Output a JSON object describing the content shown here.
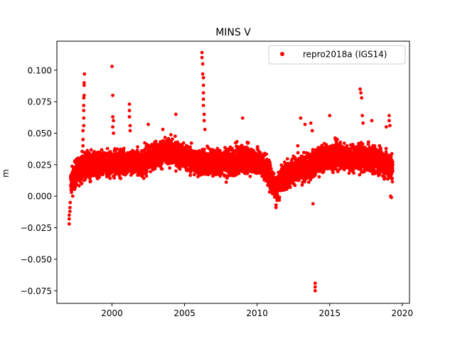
{
  "chart_data": {
    "type": "scatter",
    "title": "MINS V",
    "xlabel": "",
    "ylabel": "m",
    "xlim": [
      1996.2,
      2020.5
    ],
    "ylim": [
      -0.085,
      0.123
    ],
    "xticks": [
      2000,
      2005,
      2010,
      2015,
      2020
    ],
    "xtick_labels": [
      "2000",
      "2005",
      "2010",
      "2015",
      "2020"
    ],
    "yticks": [
      -0.075,
      -0.05,
      -0.025,
      0.0,
      0.025,
      0.05,
      0.075,
      0.1
    ],
    "ytick_labels": [
      "−0.075",
      "−0.050",
      "−0.025",
      "0.000",
      "0.025",
      "0.050",
      "0.075",
      "0.100"
    ],
    "grid": false,
    "legend_position": "top-right",
    "series": [
      {
        "name": "repro2018a (IGS14)",
        "color": "#ff0000",
        "marker": "circle",
        "baseline": [
          [
            1997.15,
            0.01
          ],
          [
            1997.5,
            0.018
          ],
          [
            1998.0,
            0.024
          ],
          [
            1999.0,
            0.024
          ],
          [
            2000.0,
            0.026
          ],
          [
            2001.0,
            0.027
          ],
          [
            2002.0,
            0.026
          ],
          [
            2003.0,
            0.033
          ],
          [
            2004.0,
            0.035
          ],
          [
            2005.0,
            0.031
          ],
          [
            2006.0,
            0.026
          ],
          [
            2007.0,
            0.027
          ],
          [
            2008.0,
            0.026
          ],
          [
            2009.0,
            0.03
          ],
          [
            2010.0,
            0.028
          ],
          [
            2010.6,
            0.022
          ],
          [
            2011.3,
            0.006
          ],
          [
            2011.8,
            0.016
          ],
          [
            2012.5,
            0.02
          ],
          [
            2013.5,
            0.023
          ],
          [
            2014.5,
            0.03
          ],
          [
            2015.5,
            0.033
          ],
          [
            2016.5,
            0.03
          ],
          [
            2017.5,
            0.03
          ],
          [
            2018.5,
            0.028
          ],
          [
            2019.35,
            0.022
          ]
        ],
        "spread": 0.007,
        "outliers": [
          [
            1997.05,
            -0.022
          ],
          [
            1997.05,
            -0.018
          ],
          [
            1997.05,
            -0.015
          ],
          [
            1997.1,
            -0.012
          ],
          [
            1997.1,
            -0.009
          ],
          [
            1997.12,
            -0.005
          ],
          [
            1998.0,
            0.04
          ],
          [
            1998.0,
            0.045
          ],
          [
            1998.0,
            0.052
          ],
          [
            1998.05,
            0.056
          ],
          [
            1998.05,
            0.062
          ],
          [
            1998.05,
            0.068
          ],
          [
            1998.05,
            0.072
          ],
          [
            1998.05,
            0.078
          ],
          [
            1998.08,
            0.08
          ],
          [
            1998.08,
            0.088
          ],
          [
            1998.08,
            0.09
          ],
          [
            1998.1,
            0.097
          ],
          [
            2000.0,
            0.103
          ],
          [
            2000.05,
            0.08
          ],
          [
            2000.05,
            0.063
          ],
          [
            2000.1,
            0.06
          ],
          [
            2000.05,
            0.055
          ],
          [
            2000.1,
            0.05
          ],
          [
            2001.2,
            0.073
          ],
          [
            2001.2,
            0.068
          ],
          [
            2001.2,
            0.063
          ],
          [
            2001.25,
            0.056
          ],
          [
            2001.25,
            0.052
          ],
          [
            2004.4,
            0.065
          ],
          [
            2006.2,
            0.114
          ],
          [
            2006.2,
            0.11
          ],
          [
            2006.25,
            0.105
          ],
          [
            2006.25,
            0.097
          ],
          [
            2006.3,
            0.094
          ],
          [
            2006.3,
            0.088
          ],
          [
            2006.3,
            0.082
          ],
          [
            2006.3,
            0.077
          ],
          [
            2006.3,
            0.072
          ],
          [
            2006.35,
            0.065
          ],
          [
            2006.35,
            0.06
          ],
          [
            2006.4,
            0.053
          ],
          [
            2009.0,
            0.062
          ],
          [
            2013.0,
            0.062
          ],
          [
            2013.3,
            0.057
          ],
          [
            2013.7,
            0.058
          ],
          [
            2013.8,
            0.052
          ],
          [
            2013.85,
            -0.006
          ],
          [
            2014.0,
            -0.069
          ],
          [
            2014.0,
            -0.072
          ],
          [
            2014.0,
            -0.075
          ],
          [
            2015.0,
            0.064
          ],
          [
            2017.1,
            0.085
          ],
          [
            2017.15,
            0.082
          ],
          [
            2017.2,
            0.078
          ],
          [
            2017.25,
            0.064
          ],
          [
            2017.3,
            0.058
          ],
          [
            2017.9,
            0.06
          ],
          [
            2018.9,
            0.055
          ],
          [
            2019.1,
            0.064
          ],
          [
            2019.1,
            0.06
          ],
          [
            2019.15,
            0.056
          ],
          [
            2019.2,
            0.0
          ],
          [
            2019.25,
            -0.001
          ],
          [
            2011.3,
            -0.009
          ],
          [
            2011.3,
            -0.007
          ],
          [
            2012.8,
            0.04
          ],
          [
            2003.5,
            0.053
          ],
          [
            2002.5,
            0.057
          ]
        ]
      }
    ]
  }
}
